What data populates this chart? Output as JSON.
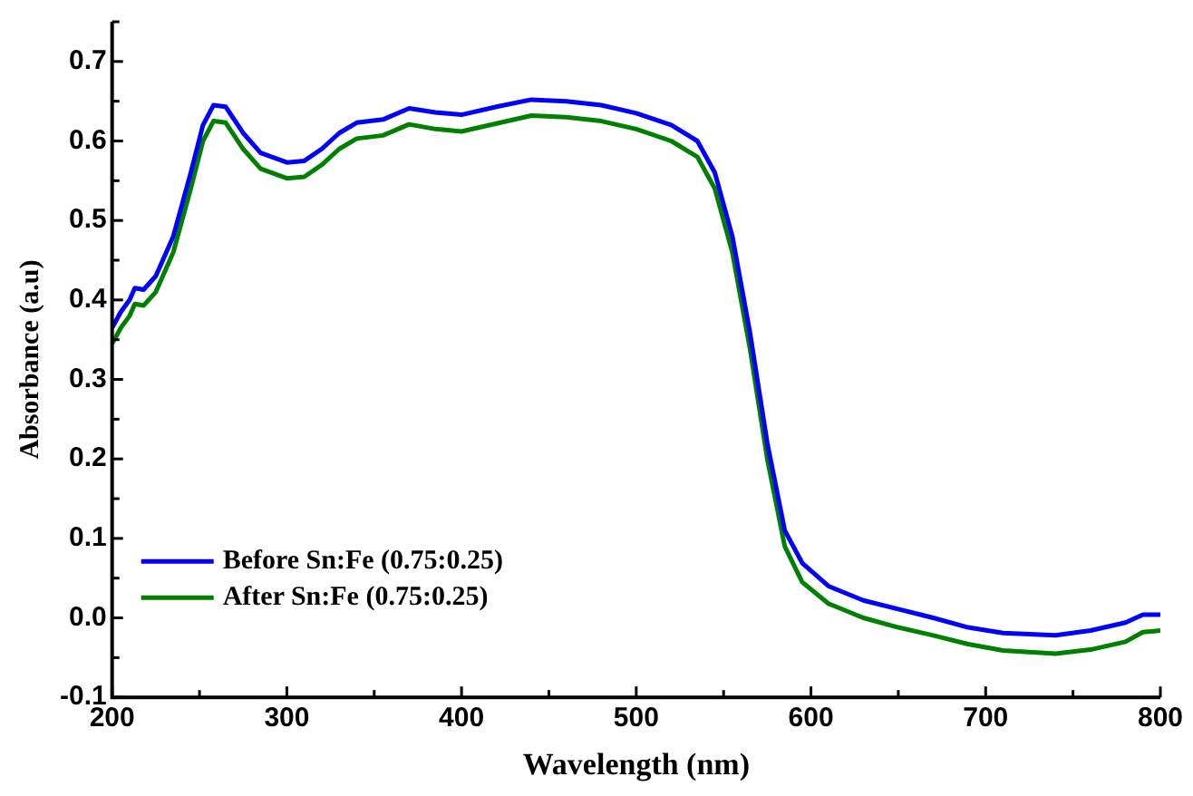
{
  "chart_data": {
    "type": "line",
    "xlabel": "Wavelength (nm)",
    "ylabel": "Absorbance (a.u)",
    "xlim": [
      200,
      800
    ],
    "xticks": [
      200,
      300,
      400,
      500,
      600,
      700,
      800
    ],
    "ylim": [
      -0.1,
      0.75
    ],
    "yticks": [
      -0.1,
      {
        "value": 0,
        "label": "0.0"
      },
      0.1,
      0.2,
      0.3,
      0.4,
      0.5,
      0.6,
      0.7
    ],
    "grid": false,
    "legend": "bottom left",
    "marker": "none",
    "line_style": "solid",
    "series": [
      {
        "name": "Before Sn:Fe (0.75:0.25)",
        "color": "#0000ff",
        "x": [
          200,
          205,
          210,
          213,
          218,
          225,
          235,
          245,
          252,
          258,
          265,
          275,
          285,
          300,
          310,
          320,
          330,
          340,
          355,
          370,
          385,
          400,
          420,
          440,
          460,
          480,
          500,
          520,
          535,
          545,
          555,
          565,
          575,
          585,
          595,
          610,
          630,
          650,
          670,
          690,
          710,
          740,
          760,
          780,
          790,
          800
        ],
        "values": [
          0.365,
          0.385,
          0.4,
          0.415,
          0.413,
          0.43,
          0.48,
          0.56,
          0.62,
          0.645,
          0.643,
          0.61,
          0.585,
          0.573,
          0.575,
          0.59,
          0.61,
          0.623,
          0.627,
          0.641,
          0.636,
          0.633,
          0.643,
          0.652,
          0.65,
          0.645,
          0.635,
          0.62,
          0.6,
          0.56,
          0.48,
          0.36,
          0.22,
          0.11,
          0.069,
          0.04,
          0.022,
          0.011,
          0.0,
          -0.012,
          -0.019,
          -0.022,
          -0.016,
          -0.006,
          0.004,
          0.004
        ]
      },
      {
        "name": "After Sn:Fe (0.75:0.25)",
        "color": "#008000",
        "x": [
          200,
          205,
          210,
          213,
          218,
          225,
          235,
          245,
          252,
          258,
          265,
          275,
          285,
          300,
          310,
          320,
          330,
          340,
          355,
          370,
          385,
          400,
          420,
          440,
          460,
          480,
          500,
          520,
          535,
          545,
          555,
          565,
          575,
          585,
          595,
          610,
          630,
          650,
          670,
          690,
          710,
          740,
          760,
          780,
          790,
          800
        ],
        "values": [
          0.345,
          0.365,
          0.38,
          0.395,
          0.393,
          0.41,
          0.46,
          0.54,
          0.6,
          0.625,
          0.623,
          0.59,
          0.565,
          0.553,
          0.555,
          0.57,
          0.59,
          0.603,
          0.607,
          0.621,
          0.615,
          0.612,
          0.622,
          0.632,
          0.63,
          0.625,
          0.615,
          0.6,
          0.58,
          0.54,
          0.46,
          0.34,
          0.2,
          0.09,
          0.045,
          0.018,
          0.0,
          -0.012,
          -0.022,
          -0.033,
          -0.041,
          -0.045,
          -0.04,
          -0.03,
          -0.018,
          -0.016
        ]
      }
    ]
  }
}
